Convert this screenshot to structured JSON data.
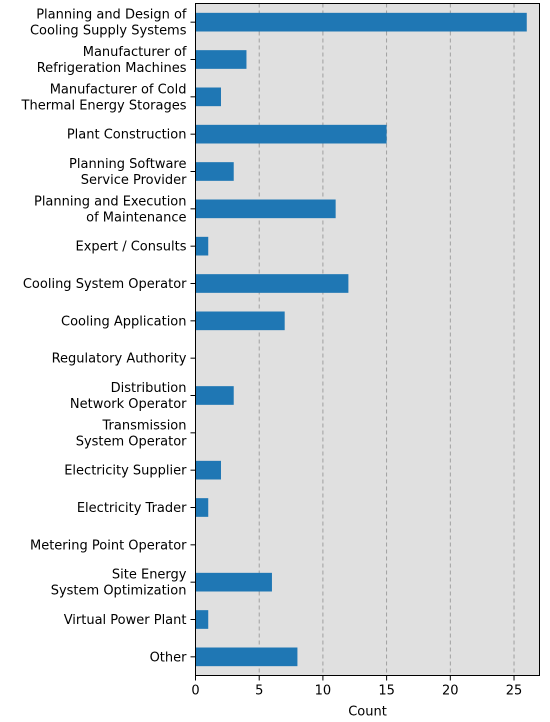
{
  "chart_data": {
    "type": "bar",
    "orientation": "horizontal",
    "categories": [
      "Planning and Design of\nCooling Supply Systems",
      "Manufacturer of\nRefrigeration Machines",
      "Manufacturer of Cold\nThermal Energy Storages",
      "Plant Construction",
      "Planning Software\nService Provider",
      "Planning and Execution\nof Maintenance",
      "Expert / Consults",
      "Cooling System Operator",
      "Cooling Application",
      "Regulatory Authority",
      "Distribution\nNetwork Operator",
      "Transmission\nSystem Operator",
      "Electricity Supplier",
      "Electricity Trader",
      "Metering Point Operator",
      "Site Energy\nSystem Optimization",
      "Virtual Power Plant",
      "Other"
    ],
    "values": [
      26,
      4,
      2,
      15,
      3,
      11,
      1,
      12,
      7,
      0,
      3,
      0,
      2,
      1,
      0,
      6,
      1,
      8
    ],
    "xlabel": "Count",
    "ylabel": "",
    "xlim": [
      0,
      27
    ],
    "xticks": [
      0,
      5,
      10,
      15,
      20,
      25
    ],
    "grid": "vertical dashed",
    "colors": {
      "bar": "#1f77b4",
      "plot_background": "#e0e0e0",
      "grid": "#999999"
    }
  }
}
